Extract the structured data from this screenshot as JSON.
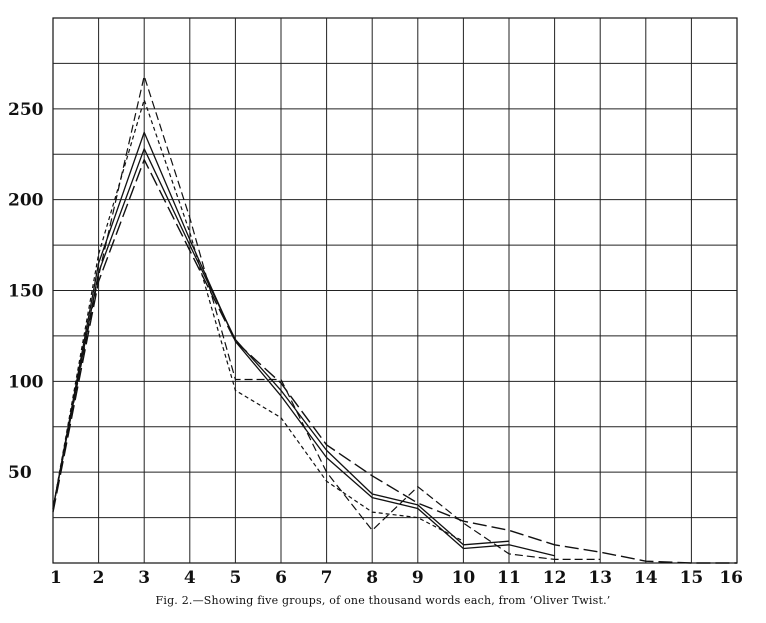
{
  "caption": "Fig. 2.—Showing five groups, of one thousand words each, from ‘Oliver Twist.’",
  "chart_data": {
    "type": "line",
    "title": "",
    "xlabel": "",
    "ylabel": "",
    "x": [
      1,
      2,
      3,
      4,
      5,
      6,
      7,
      8,
      9,
      10,
      11,
      12,
      13,
      14,
      15,
      16
    ],
    "xlim": [
      1,
      16
    ],
    "ylim": [
      0,
      300
    ],
    "x_ticks": [
      "1",
      "2",
      "3",
      "4",
      "5",
      "6",
      "7",
      "8",
      "9",
      "10",
      "11",
      "12",
      "13",
      "14",
      "15",
      "16"
    ],
    "y_ticks": [
      50,
      100,
      150,
      200,
      250
    ],
    "grid": true,
    "legend": "none",
    "series": [
      {
        "style": "solid",
        "values": [
          30,
          165,
          237,
          178,
          122,
          92,
          58,
          36,
          30,
          8,
          10,
          4,
          null,
          null,
          null,
          null
        ]
      },
      {
        "style": "solid",
        "values": [
          30,
          160,
          228,
          175,
          123,
          95,
          62,
          38,
          32,
          10,
          12,
          null,
          null,
          null,
          null,
          null
        ]
      },
      {
        "style": "long-dash",
        "values": [
          28,
          155,
          222,
          172,
          122,
          99,
          65,
          48,
          33,
          23,
          18,
          10,
          6,
          1,
          0,
          0
        ]
      },
      {
        "style": "short-dash",
        "values": [
          30,
          170,
          255,
          182,
          95,
          80,
          45,
          28,
          25,
          12,
          null,
          null,
          null,
          null,
          null,
          null
        ]
      },
      {
        "style": "medium-dash",
        "values": [
          30,
          158,
          268,
          190,
          101,
          101,
          50,
          18,
          42,
          22,
          5,
          2,
          2,
          null,
          null,
          null
        ]
      }
    ]
  }
}
